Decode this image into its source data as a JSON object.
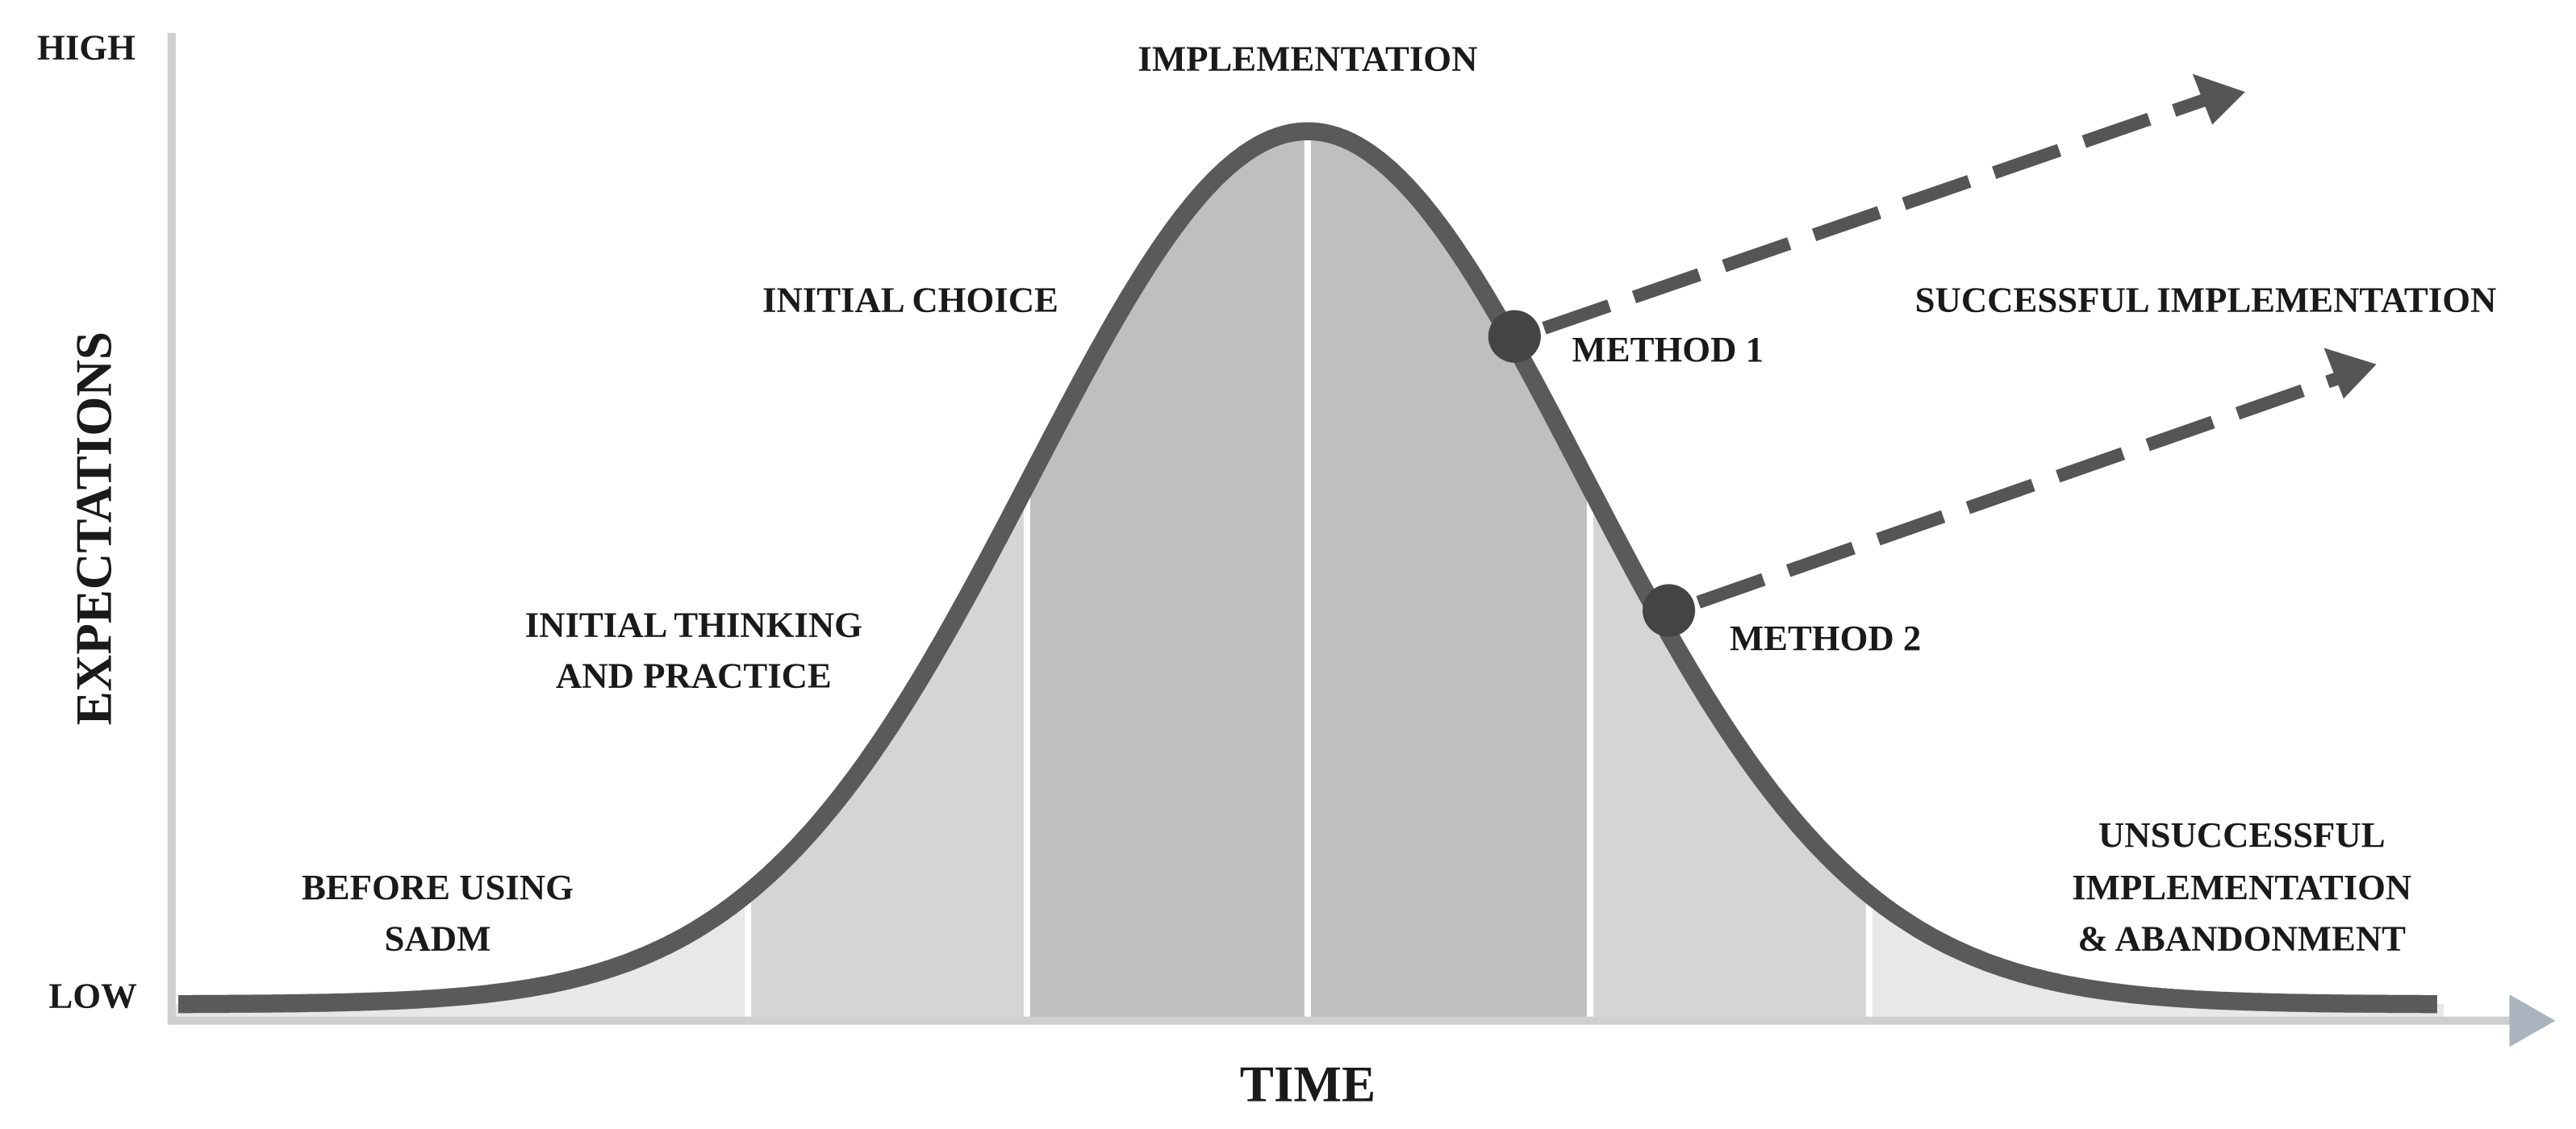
{
  "axes": {
    "y_high": "HIGH",
    "y_low": "LOW",
    "y_label": "EXPECTATIONS",
    "x_label": "TIME"
  },
  "stages": [
    {
      "lines": [
        "BEFORE USING",
        "SADM"
      ]
    },
    {
      "lines": [
        "INITIAL THINKING",
        "AND PRACTICE"
      ]
    },
    {
      "lines": [
        "INITIAL CHOICE"
      ]
    },
    {
      "lines": [
        "IMPLEMENTATION"
      ]
    }
  ],
  "methods": [
    "METHOD 1",
    "METHOD 2"
  ],
  "outcomes": {
    "success": "SUCCESSFUL IMPLEMENTATION",
    "failure": [
      "UNSUCCESSFUL",
      "IMPLEMENTATION",
      "& ABANDONMENT"
    ]
  }
}
